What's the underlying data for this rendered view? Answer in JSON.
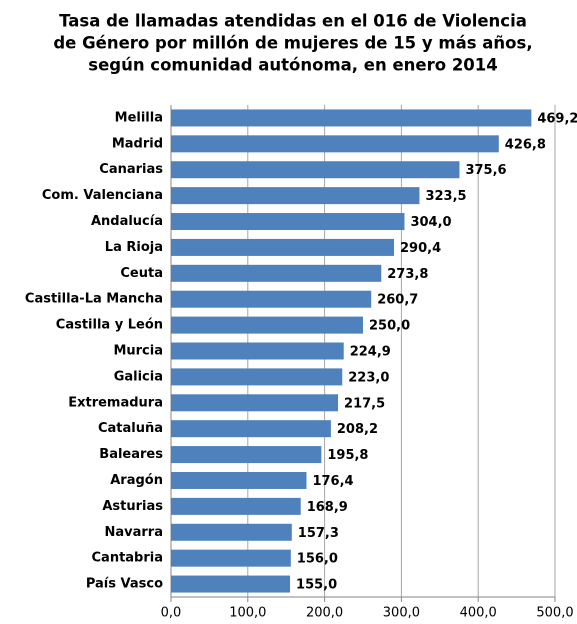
{
  "chart_data": {
    "type": "bar",
    "orientation": "horizontal",
    "title": [
      "Tasa de llamadas atendidas en el 016 de Violencia",
      "de Género por millón de mujeres de 15 y más años,",
      "según comunidad autónoma, en enero 2014"
    ],
    "categories": [
      "Melilla",
      "Madrid",
      "Canarias",
      "Com. Valenciana",
      "Andalucía",
      "La Rioja",
      "Ceuta",
      "Castilla-La Mancha",
      "Castilla y León",
      "Murcia",
      "Galicia",
      "Extremadura",
      "Cataluña",
      "Baleares",
      "Aragón",
      "Asturias",
      "Navarra",
      "Cantabria",
      "País Vasco"
    ],
    "values": [
      469.2,
      426.8,
      375.6,
      323.5,
      304.0,
      290.4,
      273.8,
      260.7,
      250.0,
      224.9,
      223.0,
      217.5,
      208.2,
      195.8,
      176.4,
      168.9,
      157.3,
      156.0,
      155.0
    ],
    "value_labels": [
      "469,2",
      "426,8",
      "375,6",
      "323,5",
      "304,0",
      "290,4",
      "273,8",
      "260,7",
      "250,0",
      "224,9",
      "223,0",
      "217,5",
      "208,2",
      "195,8",
      "176,4",
      "168,9",
      "157,3",
      "156,0",
      "155,0"
    ],
    "color": "#4f81bd",
    "xlim": [
      0,
      500
    ],
    "xticks": [
      {
        "value": 0,
        "label": "0,0"
      },
      {
        "value": 100,
        "label": "100,0"
      },
      {
        "value": 200,
        "label": "200,0"
      },
      {
        "value": 300,
        "label": "300,0"
      },
      {
        "value": 400,
        "label": "400,0"
      },
      {
        "value": 500,
        "label": "500,0"
      }
    ],
    "grid": true
  }
}
